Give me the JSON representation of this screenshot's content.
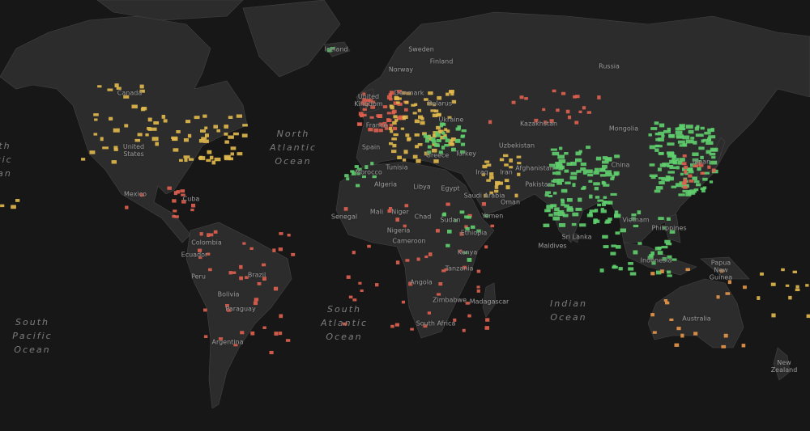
{
  "colors": {
    "ocean": "#171717",
    "land": "#2d2c2c",
    "border": "#4a4a4a",
    "low": "#5fcf6e",
    "mid": "#e2b94c",
    "high": "#e0604f",
    "midHigh": "#e8974a"
  },
  "oceans": {
    "north_atlantic": "North\nAtlantic\nOcean",
    "south_atlantic": "South\nAtlantic\nOcean",
    "indian": "Indian\nOcean",
    "south_pacific": "South\nPacific\nOcean",
    "north_pacific_partial": "th\ntic\nan"
  },
  "countries": {
    "iceland": "Iceland",
    "sweden": "Sweden",
    "norway": "Norway",
    "finland": "Finland",
    "russia": "Russia",
    "uk": "United Kingdom",
    "denmark": "Denmark",
    "belarus": "Belarus",
    "france": "France",
    "ukraine": "Ukraine",
    "kazakhstan": "Kazakhstan",
    "mongolia": "Mongolia",
    "uzbekistan": "Uzbekistan",
    "spain": "Spain",
    "turkey": "Turkey",
    "greece": "Greece",
    "tunisia": "Tunisia",
    "morocco": "Morocco",
    "iran": "Iran",
    "iraq": "Iraq",
    "afghanistan": "Afghanistan",
    "china": "China",
    "japan": "Japan",
    "algeria": "Algeria",
    "libya": "Libya",
    "egypt": "Egypt",
    "pakistan": "Pakistan",
    "saudi_arabia": "Saudi Arabia",
    "oman": "Oman",
    "yemen": "Yemen",
    "chad": "Chad",
    "mali": "Mali",
    "niger": "Niger",
    "senegal": "Senegal",
    "sudan": "Sudan",
    "nigeria": "Nigeria",
    "ethiopia": "Ethiopia",
    "cameroon": "Cameroon",
    "kenya": "Kenya",
    "tanzania": "Tanzania",
    "angola": "Angola",
    "zimbabwe": "Zimbabwe",
    "madagascar": "Madagascar",
    "south_africa": "South Africa",
    "vietnam": "Vietnam",
    "philippines": "Philippines",
    "maldives": "Maldives",
    "sri_lanka": "Sri Lanka",
    "indonesia": "Indonesia",
    "papua_new_guinea": "Papua New Guinea",
    "australia": "Australia",
    "new_zealand": "New Zealand",
    "canada": "Canada",
    "united_states": "United States",
    "mexico": "Mexico",
    "cuba": "Cuba",
    "colombia": "Colombia",
    "ecuador": "Ecuador",
    "peru": "Peru",
    "brazil": "Brazil",
    "bolivia": "Bolivia",
    "paraguay": "Paraguay",
    "argentina": "Argentina"
  }
}
